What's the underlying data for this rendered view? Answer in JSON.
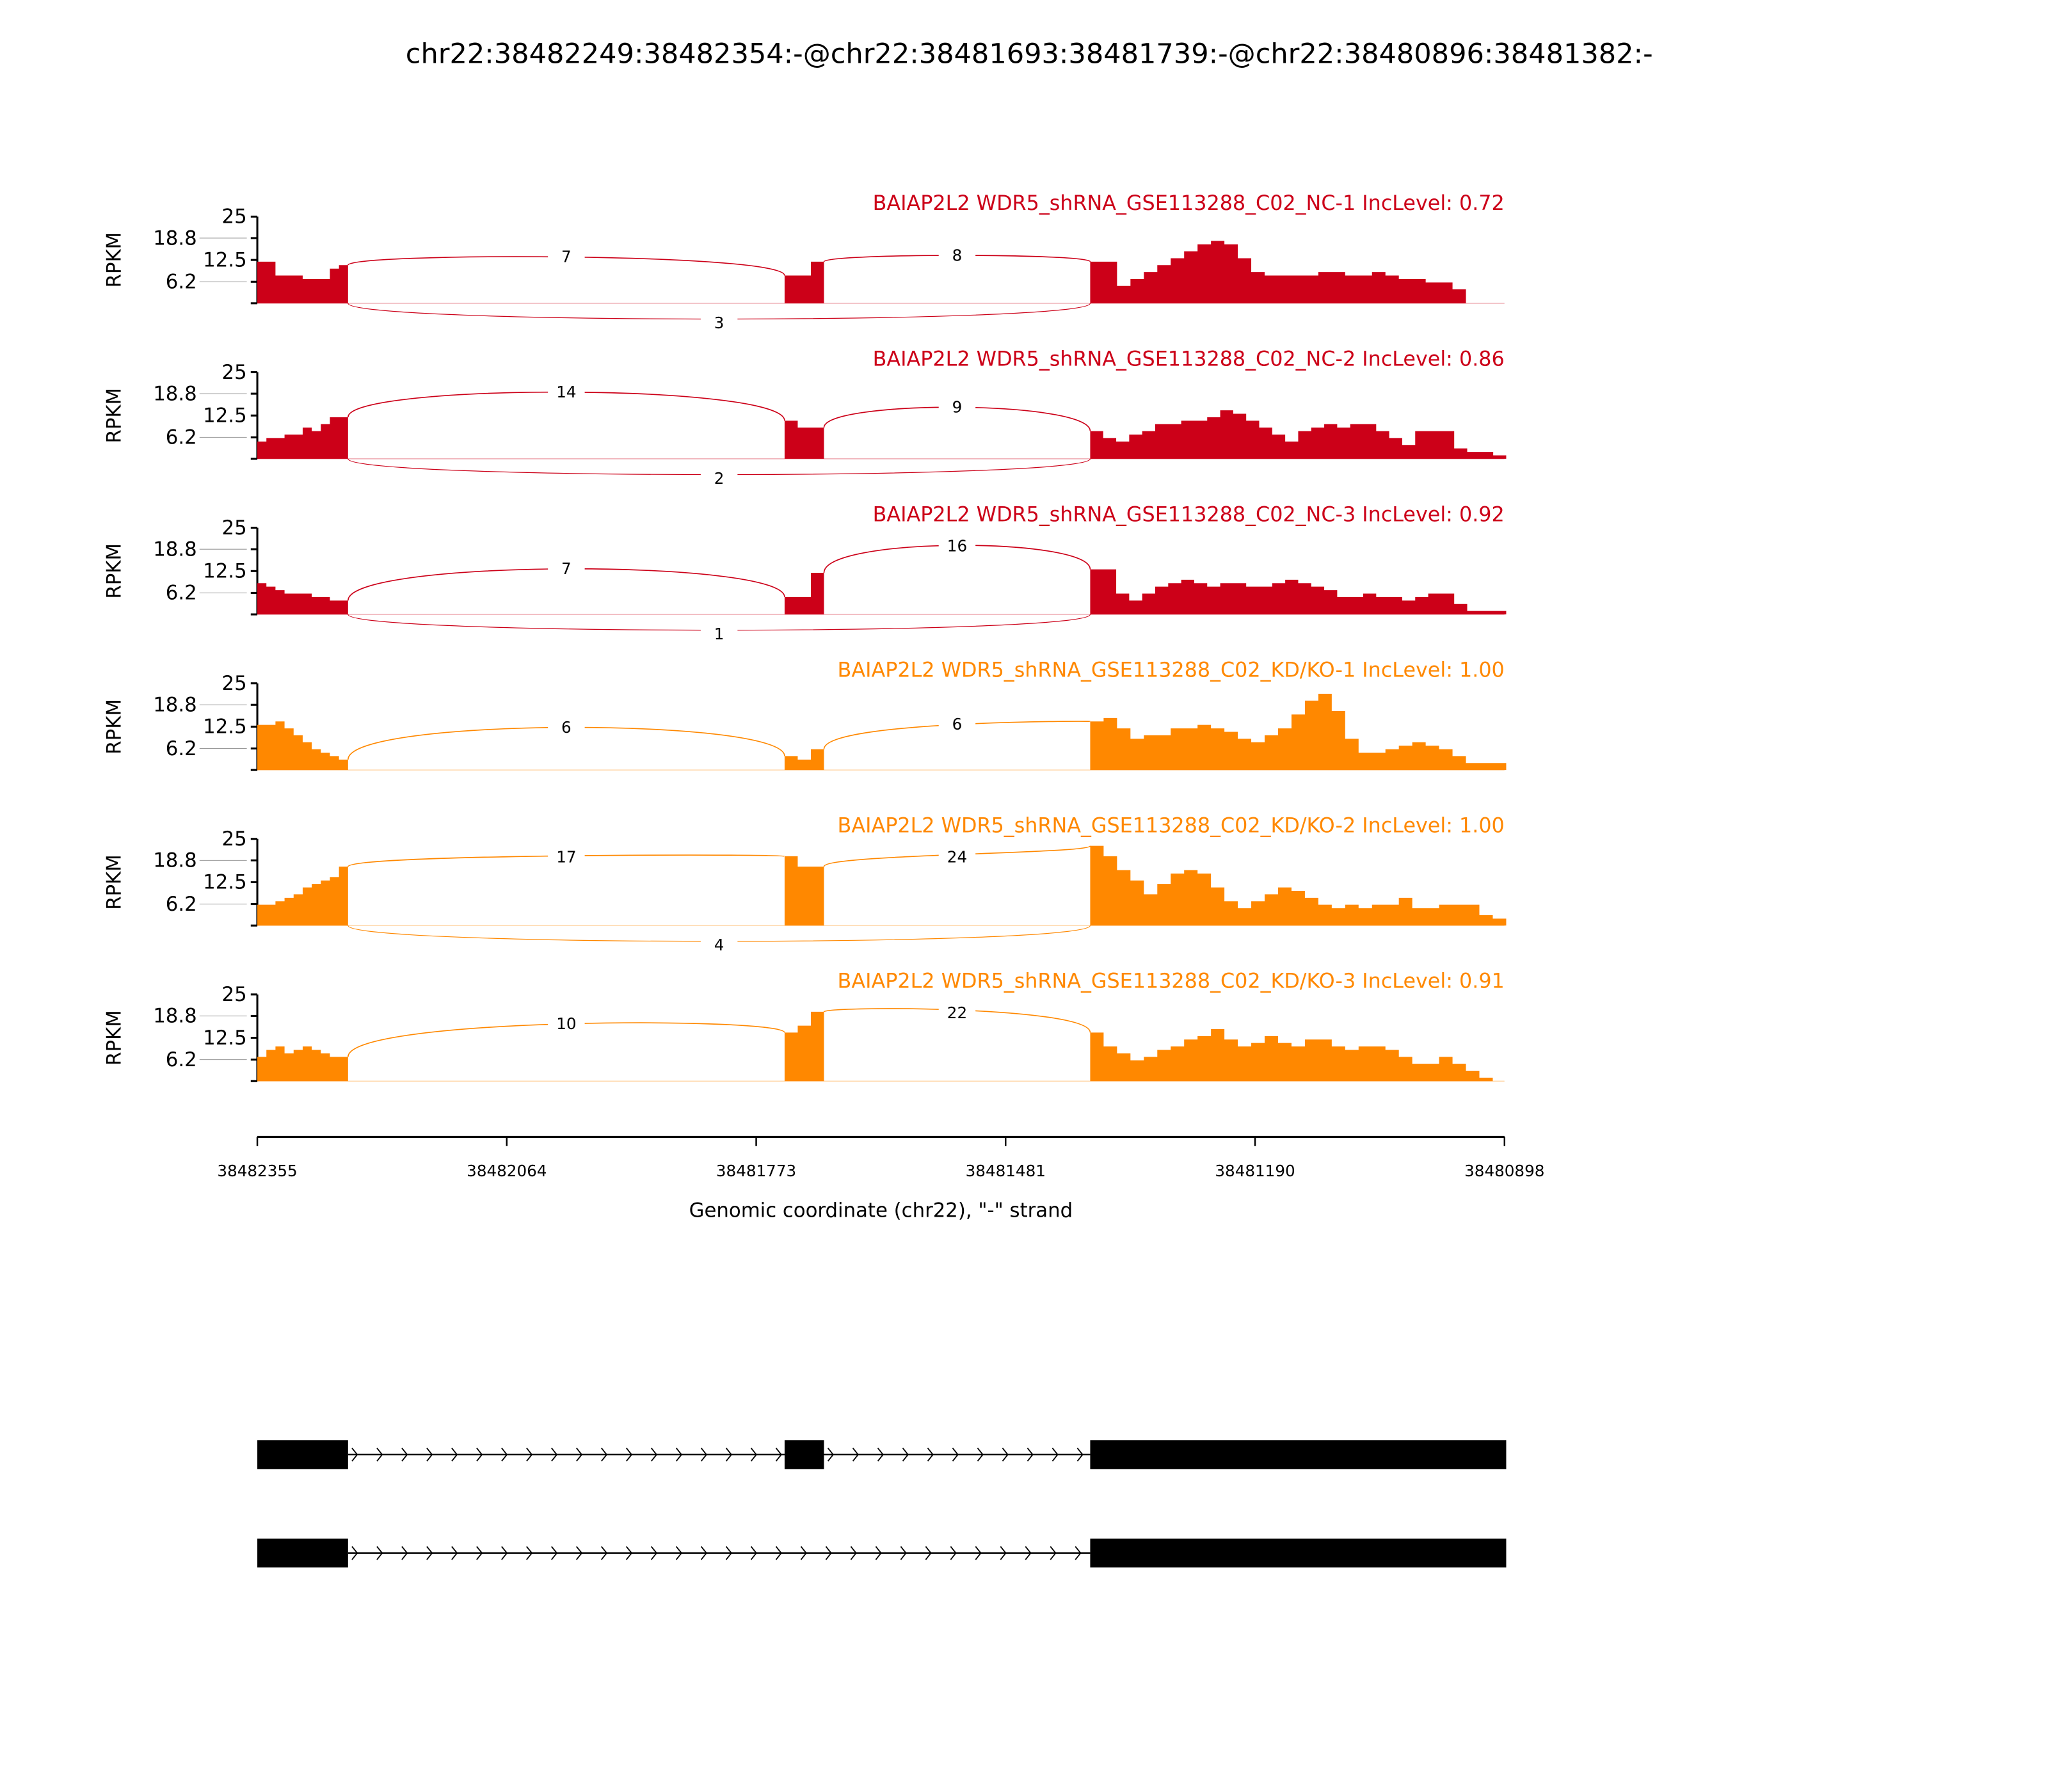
{
  "chart_data": {
    "type": "area",
    "title": "chr22:38482249:38482354:-@chr22:38481693:38481739:-@chr22:38480896:38481382:-",
    "xlabel": "Genomic coordinate (chr22), \"-\" strand",
    "ylabel": "RPKM",
    "xlim": [
      38482355,
      38480898
    ],
    "x_ticks": [
      "38482355",
      "38482064",
      "38481773",
      "38481481",
      "38481190",
      "38480898"
    ],
    "ylim": [
      0,
      25
    ],
    "y_ticks": [
      "25",
      "18.8",
      "12.5",
      "6.2"
    ],
    "exons": [
      {
        "start": 38482355,
        "end": 38482249
      },
      {
        "start": 38481739,
        "end": 38481693
      },
      {
        "start": 38481382,
        "end": 38480896
      }
    ],
    "colors": {
      "NC": "#cc0018",
      "KD": "#ff8800"
    },
    "samples": [
      {
        "label": "BAIAP2L2 WDR5_shRNA_GSE113288_C02_NC-1 IncLevel: 0.72",
        "group": "NC",
        "junctions": {
          "inc1": 7,
          "inc2": 8,
          "skip": 3
        },
        "coverage": [
          [
            12,
            12,
            8,
            8,
            8,
            7,
            7,
            7,
            10,
            11
          ],
          [
            8,
            8,
            12
          ],
          [
            12,
            12,
            5,
            7,
            9,
            11,
            13,
            15,
            17,
            18,
            17,
            13,
            9,
            8,
            8,
            8,
            8,
            9,
            9,
            8,
            8,
            9,
            8,
            7,
            7,
            6,
            6,
            4,
            0,
            0,
            0
          ]
        ]
      },
      {
        "label": "BAIAP2L2 WDR5_shRNA_GSE113288_C02_NC-2 IncLevel: 0.86",
        "group": "NC",
        "junctions": {
          "inc1": 14,
          "inc2": 9,
          "skip": 2
        },
        "coverage": [
          [
            5,
            6,
            6,
            7,
            7,
            9,
            8,
            10,
            12,
            12
          ],
          [
            11,
            9,
            9
          ],
          [
            8,
            6,
            5,
            7,
            8,
            10,
            10,
            11,
            11,
            12,
            14,
            13,
            11,
            9,
            7,
            5,
            8,
            9,
            10,
            9,
            10,
            10,
            8,
            6,
            4,
            8,
            8,
            8,
            3,
            2,
            2,
            1
          ]
        ]
      },
      {
        "label": "BAIAP2L2 WDR5_shRNA_GSE113288_C02_NC-3 IncLevel: 0.92",
        "group": "NC",
        "junctions": {
          "inc1": 7,
          "inc2": 16,
          "skip": 1
        },
        "coverage": [
          [
            9,
            8,
            7,
            6,
            6,
            6,
            5,
            5,
            4,
            4
          ],
          [
            5,
            5,
            12
          ],
          [
            13,
            13,
            6,
            4,
            6,
            8,
            9,
            10,
            9,
            8,
            9,
            9,
            8,
            8,
            9,
            10,
            9,
            8,
            7,
            5,
            5,
            6,
            5,
            5,
            4,
            5,
            6,
            6,
            3,
            1,
            1,
            1
          ]
        ]
      },
      {
        "label": "BAIAP2L2 WDR5_shRNA_GSE113288_C02_KD/KO-1 IncLevel: 1.00",
        "group": "KD",
        "junctions": {
          "inc1": 6,
          "inc2": 6,
          "skip": null
        },
        "coverage": [
          [
            13,
            13,
            14,
            12,
            10,
            8,
            6,
            5,
            4,
            3
          ],
          [
            4,
            3,
            6
          ],
          [
            14,
            15,
            12,
            9,
            10,
            10,
            12,
            12,
            13,
            12,
            11,
            9,
            8,
            10,
            12,
            16,
            20,
            22,
            17,
            9,
            5,
            5,
            6,
            7,
            8,
            7,
            6,
            4,
            2,
            2,
            2
          ]
        ]
      },
      {
        "label": "BAIAP2L2 WDR5_shRNA_GSE113288_C02_KD/KO-2 IncLevel: 1.00",
        "group": "KD",
        "junctions": {
          "inc1": 17,
          "inc2": 24,
          "skip": 4
        },
        "coverage": [
          [
            6,
            6,
            7,
            8,
            9,
            11,
            12,
            13,
            14,
            17
          ],
          [
            20,
            17,
            17
          ],
          [
            23,
            20,
            16,
            13,
            9,
            12,
            15,
            16,
            15,
            11,
            7,
            5,
            7,
            9,
            11,
            10,
            8,
            6,
            5,
            6,
            5,
            6,
            6,
            8,
            5,
            5,
            6,
            6,
            6,
            3,
            2
          ]
        ]
      },
      {
        "label": "BAIAP2L2 WDR5_shRNA_GSE113288_C02_KD/KO-3 IncLevel: 0.91",
        "group": "KD",
        "junctions": {
          "inc1": 10,
          "inc2": 22,
          "skip": null
        },
        "coverage": [
          [
            7,
            9,
            10,
            8,
            9,
            10,
            9,
            8,
            7,
            7
          ],
          [
            14,
            16,
            20
          ],
          [
            14,
            10,
            8,
            6,
            7,
            9,
            10,
            12,
            13,
            15,
            12,
            10,
            11,
            13,
            11,
            10,
            12,
            12,
            10,
            9,
            10,
            10,
            9,
            7,
            5,
            5,
            7,
            5,
            3,
            1,
            0
          ]
        ]
      }
    ],
    "transcripts": [
      {
        "exons": [
          0,
          1,
          2
        ]
      },
      {
        "exons": [
          0,
          2
        ]
      }
    ]
  }
}
